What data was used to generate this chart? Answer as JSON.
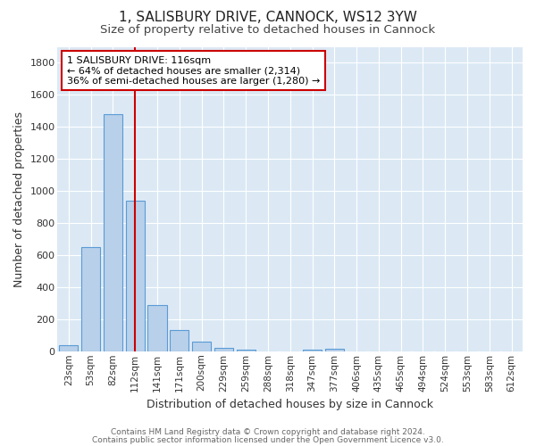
{
  "title": "1, SALISBURY DRIVE, CANNOCK, WS12 3YW",
  "subtitle": "Size of property relative to detached houses in Cannock",
  "xlabel": "Distribution of detached houses by size in Cannock",
  "ylabel": "Number of detached properties",
  "categories": [
    "23sqm",
    "53sqm",
    "82sqm",
    "112sqm",
    "141sqm",
    "171sqm",
    "200sqm",
    "229sqm",
    "259sqm",
    "288sqm",
    "318sqm",
    "347sqm",
    "377sqm",
    "406sqm",
    "435sqm",
    "465sqm",
    "494sqm",
    "524sqm",
    "553sqm",
    "583sqm",
    "612sqm"
  ],
  "values": [
    40,
    650,
    1480,
    940,
    290,
    130,
    62,
    22,
    12,
    0,
    0,
    12,
    18,
    0,
    0,
    0,
    0,
    0,
    0,
    0,
    0
  ],
  "bar_color": "#b8d0ea",
  "bar_edge_color": "#5b9bd5",
  "bar_edge_width": 0.8,
  "red_line_index": 3,
  "red_line_color": "#cc0000",
  "annotation_line1": "1 SALISBURY DRIVE: 116sqm",
  "annotation_line2": "← 64% of detached houses are smaller (2,314)",
  "annotation_line3": "36% of semi-detached houses are larger (1,280) →",
  "annotation_box_color": "#ffffff",
  "annotation_box_edge": "#cc0000",
  "ylim": [
    0,
    1900
  ],
  "yticks": [
    0,
    200,
    400,
    600,
    800,
    1000,
    1200,
    1400,
    1600,
    1800
  ],
  "background_color": "#dce9f5",
  "grid_color": "#ffffff",
  "footer_line1": "Contains HM Land Registry data © Crown copyright and database right 2024.",
  "footer_line2": "Contains public sector information licensed under the Open Government Licence v3.0.",
  "title_fontsize": 11,
  "subtitle_fontsize": 9.5,
  "axis_label_fontsize": 9,
  "tick_fontsize": 7.5,
  "annotation_fontsize": 8
}
